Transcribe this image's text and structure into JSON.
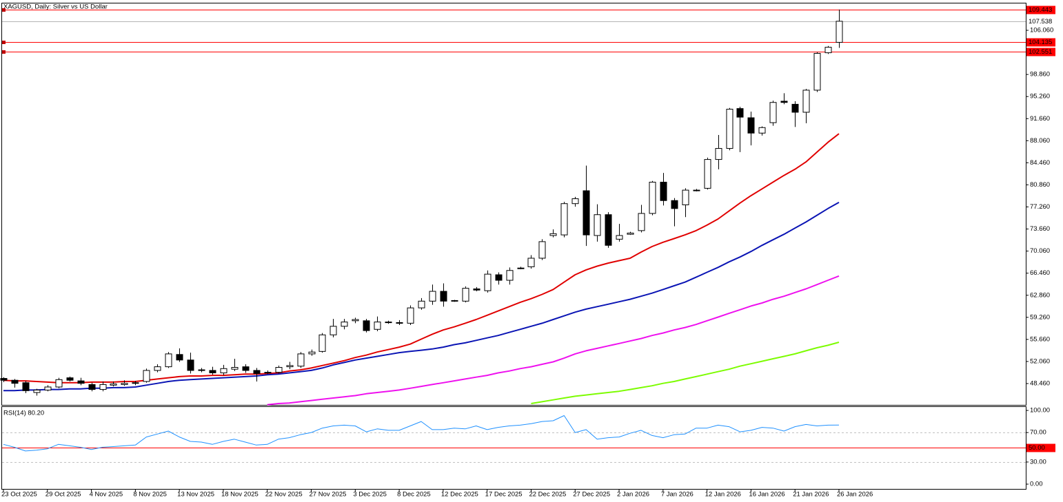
{
  "chart_data": [
    {
      "type": "candlestick",
      "title": "XAGUSD, Daily:  Silver vs US Dollar",
      "categories": [
        "23 Oct 2025",
        null,
        null,
        null,
        "29 Oct 2025",
        null,
        null,
        null,
        "4 Nov 2025",
        null,
        null,
        null,
        "8 Nov 2025",
        null,
        null,
        null,
        "13 Nov 2025",
        null,
        null,
        null,
        "18 Nov 2025",
        null,
        null,
        null,
        "22 Nov 2025",
        null,
        null,
        null,
        "27 Nov 2025",
        null,
        null,
        null,
        "3 Dec 2025",
        null,
        null,
        null,
        "8 Dec 2025",
        null,
        null,
        null,
        "12 Dec 2025",
        null,
        null,
        null,
        "17 Dec 2025",
        null,
        null,
        null,
        "22 Dec 2025",
        null,
        null,
        null,
        "27 Dec 2025",
        null,
        null,
        null,
        "2 Jan 2026",
        null,
        null,
        null,
        "7 Jan 2026",
        null,
        null,
        null,
        "12 Jan 2026",
        null,
        null,
        null,
        "16 Jan 2026",
        null,
        null,
        null,
        "21 Jan 2026",
        null,
        null,
        null,
        "26 Jan 2026"
      ],
      "open": [
        49.3,
        49.0,
        48.6,
        47.0,
        47.4,
        47.9,
        49.4,
        48.9,
        48.3,
        47.5,
        48.2,
        48.3,
        48.5,
        48.8,
        50.6,
        51.2,
        53.2,
        52.3,
        50.7,
        50.6,
        50.2,
        50.8,
        51.2,
        50.6,
        50.2,
        50.3,
        51.2,
        51.3,
        53.3,
        53.7,
        56.4,
        57.8,
        58.7,
        58.7,
        57.3,
        58.4,
        58.3,
        58.3,
        60.8,
        61.9,
        63.5,
        62.0,
        61.9,
        63.9,
        63.6,
        66.2,
        65.3,
        67.2,
        67.5,
        68.9,
        72.6,
        72.7,
        77.8,
        79.9,
        72.6,
        76.0,
        72.0,
        72.8,
        73.4,
        76.2,
        81.3,
        78.3,
        77.6,
        79.9,
        80.3,
        85.0,
        86.8,
        93.3,
        91.8,
        89.3,
        91.0,
        94.5,
        94.0,
        92.7,
        96.3,
        102.4,
        104.1
      ],
      "high": [
        49.5,
        49.2,
        48.9,
        47.6,
        48.2,
        49.4,
        49.6,
        49.4,
        48.6,
        48.8,
        48.8,
        49.0,
        48.9,
        50.9,
        51.6,
        53.6,
        54.2,
        53.5,
        51.0,
        51.2,
        51.5,
        52.5,
        51.6,
        51.0,
        50.6,
        51.4,
        52.0,
        53.6,
        54.0,
        56.7,
        59.0,
        59.0,
        59.2,
        59.0,
        59.4,
        58.7,
        58.8,
        61.2,
        62.4,
        64.6,
        64.8,
        62.1,
        64.3,
        64.2,
        66.9,
        66.6,
        67.4,
        67.5,
        69.4,
        72.0,
        73.6,
        78.1,
        78.9,
        84.0,
        77.7,
        76.4,
        74.5,
        73.2,
        77.6,
        81.5,
        82.8,
        78.7,
        80.3,
        80.2,
        85.3,
        89.0,
        93.4,
        93.6,
        92.8,
        90.4,
        94.6,
        95.8,
        94.5,
        96.5,
        102.5,
        103.5,
        109.443
      ],
      "low": [
        48.7,
        47.8,
        46.9,
        46.5,
        47.2,
        47.7,
        48.8,
        48.2,
        47.2,
        47.2,
        48.0,
        48.1,
        48.2,
        48.6,
        50.3,
        51.0,
        52.0,
        50.1,
        50.3,
        49.9,
        49.8,
        50.5,
        50.2,
        48.8,
        50.0,
        50.1,
        50.8,
        51.0,
        53.0,
        53.5,
        56.0,
        57.3,
        58.3,
        56.8,
        57.0,
        58.2,
        58.0,
        58.0,
        60.5,
        61.3,
        61.0,
        61.8,
        61.7,
        63.5,
        63.3,
        64.6,
        64.6,
        67.1,
        67.2,
        68.6,
        72.3,
        72.3,
        77.3,
        70.9,
        71.6,
        70.6,
        71.6,
        72.7,
        73.1,
        75.9,
        77.5,
        74.1,
        75.6,
        79.8,
        80.1,
        83.4,
        86.5,
        86.2,
        87.3,
        88.9,
        90.5,
        94.0,
        90.3,
        90.9,
        96.0,
        102.2,
        103.2
      ],
      "close": [
        49.0,
        48.5,
        47.3,
        47.4,
        47.9,
        49.1,
        49.0,
        48.5,
        47.5,
        48.3,
        48.4,
        48.5,
        48.6,
        50.6,
        51.2,
        53.3,
        52.3,
        50.6,
        50.6,
        50.2,
        50.9,
        51.1,
        50.6,
        50.1,
        50.3,
        51.1,
        51.4,
        53.3,
        53.6,
        56.4,
        57.8,
        58.5,
        58.9,
        57.1,
        58.5,
        58.5,
        58.4,
        60.8,
        61.9,
        63.5,
        61.9,
        61.9,
        64.0,
        63.7,
        66.3,
        65.3,
        66.9,
        67.3,
        68.9,
        71.6,
        72.9,
        77.8,
        78.6,
        72.7,
        76.0,
        71.0,
        72.6,
        73.0,
        76.2,
        81.3,
        78.3,
        77.0,
        80.0,
        80.0,
        85.0,
        86.8,
        93.2,
        91.9,
        89.3,
        90.2,
        94.3,
        94.3,
        92.7,
        96.3,
        102.3,
        103.3,
        107.538
      ],
      "up_color": "#ffffff",
      "down_color": "#000000",
      "overlays": [
        {
          "color": "#e00000",
          "values": [
            49.0,
            48.9,
            48.9,
            48.8,
            48.7,
            48.6,
            48.6,
            48.6,
            48.7,
            48.7,
            48.7,
            48.8,
            48.8,
            49.0,
            49.2,
            49.4,
            49.6,
            49.7,
            49.7,
            49.8,
            49.8,
            49.9,
            50.0,
            50.0,
            50.1,
            50.2,
            50.5,
            50.7,
            51.0,
            51.4,
            51.8,
            52.2,
            52.7,
            53.1,
            53.6,
            54.0,
            54.4,
            54.9,
            55.7,
            56.5,
            57.2,
            57.7,
            58.3,
            58.9,
            59.6,
            60.3,
            61.0,
            61.7,
            62.3,
            63.0,
            63.8,
            65.0,
            66.2,
            67.0,
            67.6,
            68.1,
            68.5,
            68.9,
            69.9,
            70.8,
            71.5,
            72.1,
            72.7,
            73.4,
            74.3,
            75.3,
            76.6,
            77.9,
            79.1,
            80.2,
            81.3,
            82.4,
            83.4,
            84.6,
            86.2,
            87.8,
            89.2
          ]
        },
        {
          "color": "#0a14b4",
          "values": [
            47.3,
            47.3,
            47.4,
            47.4,
            47.5,
            47.5,
            47.6,
            47.6,
            47.7,
            47.7,
            47.8,
            47.8,
            47.9,
            48.2,
            48.5,
            48.8,
            49.0,
            49.1,
            49.2,
            49.3,
            49.4,
            49.5,
            49.6,
            49.7,
            49.9,
            50.0,
            50.2,
            50.4,
            50.6,
            51.0,
            51.5,
            51.9,
            52.3,
            52.6,
            52.9,
            53.2,
            53.5,
            53.7,
            53.9,
            54.1,
            54.4,
            54.8,
            55.1,
            55.5,
            55.9,
            56.3,
            56.8,
            57.3,
            57.8,
            58.3,
            58.9,
            59.5,
            60.1,
            60.6,
            61.0,
            61.4,
            61.8,
            62.2,
            62.7,
            63.2,
            63.8,
            64.4,
            65.0,
            65.8,
            66.6,
            67.4,
            68.3,
            69.1,
            70.0,
            71.0,
            71.9,
            72.8,
            73.8,
            74.8,
            75.9,
            77.0,
            78.0
          ]
        },
        {
          "color": "#ee10ee",
          "values": [
            null,
            null,
            null,
            null,
            null,
            null,
            null,
            null,
            null,
            null,
            null,
            null,
            null,
            null,
            null,
            null,
            null,
            null,
            null,
            null,
            null,
            null,
            null,
            null,
            45.0,
            45.2,
            45.3,
            45.5,
            45.7,
            45.9,
            46.1,
            46.3,
            46.5,
            46.8,
            47.0,
            47.2,
            47.4,
            47.7,
            48.0,
            48.3,
            48.6,
            48.9,
            49.2,
            49.5,
            49.8,
            50.2,
            50.5,
            50.9,
            51.2,
            51.6,
            52.0,
            52.6,
            53.3,
            53.8,
            54.2,
            54.6,
            55.0,
            55.4,
            55.8,
            56.3,
            56.7,
            57.2,
            57.6,
            58.1,
            58.7,
            59.3,
            59.9,
            60.5,
            61.1,
            61.6,
            62.2,
            62.7,
            63.3,
            63.9,
            64.6,
            65.3,
            66.0
          ]
        },
        {
          "color": "#7cfc00",
          "values": [
            null,
            null,
            null,
            null,
            null,
            null,
            null,
            null,
            null,
            null,
            null,
            null,
            null,
            null,
            null,
            null,
            null,
            null,
            null,
            null,
            null,
            null,
            null,
            null,
            null,
            null,
            null,
            null,
            null,
            null,
            null,
            null,
            null,
            null,
            null,
            null,
            null,
            null,
            null,
            null,
            null,
            null,
            null,
            null,
            null,
            null,
            null,
            null,
            45.2,
            45.5,
            45.8,
            46.1,
            46.4,
            46.6,
            46.8,
            47.0,
            47.2,
            47.5,
            47.8,
            48.1,
            48.5,
            48.8,
            49.2,
            49.6,
            50.0,
            50.4,
            50.8,
            51.3,
            51.7,
            52.1,
            52.5,
            52.9,
            53.3,
            53.8,
            54.3,
            54.7,
            55.2
          ]
        }
      ],
      "levels": [
        {
          "value": 109.443,
          "color": "#ff0000",
          "boxed": true
        },
        {
          "value": 107.538,
          "color": "#b4b4b4",
          "boxed": false
        },
        {
          "value": 104.135,
          "color": "#ff0000",
          "boxed": true
        },
        {
          "value": 102.551,
          "color": "#ff0000",
          "boxed": true
        }
      ],
      "ylim": [
        44.98,
        110.44
      ],
      "yticks": [
        {
          "value": 48.46,
          "label": "48.460"
        },
        {
          "value": 52.06,
          "label": "52.060"
        },
        {
          "value": 55.66,
          "label": "55.660"
        },
        {
          "value": 59.26,
          "label": "59.260"
        },
        {
          "value": 62.86,
          "label": "62.860"
        },
        {
          "value": 66.46,
          "label": "66.460"
        },
        {
          "value": 70.06,
          "label": "70.060"
        },
        {
          "value": 73.66,
          "label": "73.660"
        },
        {
          "value": 77.26,
          "label": "77.260"
        },
        {
          "value": 80.86,
          "label": "80.860"
        },
        {
          "value": 84.46,
          "label": "84.460"
        },
        {
          "value": 88.06,
          "label": "88.060"
        },
        {
          "value": 91.66,
          "label": "91.660"
        },
        {
          "value": 95.26,
          "label": "95.260"
        },
        {
          "value": 98.86,
          "label": "98.860"
        },
        {
          "value": 106.06,
          "label": "106.060"
        }
      ]
    },
    {
      "type": "line",
      "title": "RSI(14) 80.20",
      "series": [
        {
          "color": "#1e90ff",
          "values": [
            54,
            50,
            45,
            46,
            48,
            54,
            52,
            50,
            47,
            50,
            51,
            52,
            53,
            64,
            68,
            72,
            64,
            58,
            57,
            54,
            58,
            61,
            57,
            53,
            54,
            61,
            63,
            67,
            70,
            76,
            79,
            80,
            79,
            71,
            75,
            73,
            73,
            79,
            85,
            74,
            74,
            76,
            75,
            79,
            74,
            77,
            79,
            80,
            82,
            85,
            86,
            93,
            70,
            74,
            61,
            63,
            64,
            69,
            73,
            66,
            63,
            67,
            68,
            76,
            76,
            80,
            78,
            71,
            73,
            77,
            76,
            72,
            78,
            81,
            79,
            80,
            80.2
          ]
        }
      ],
      "levels": [
        {
          "value": 70,
          "color": "#c0c0c0",
          "dashed": true
        },
        {
          "value": 50,
          "label": "50.00",
          "color": "#ff0000",
          "boxed": true
        },
        {
          "value": 30,
          "color": "#c0c0c0",
          "dashed": true
        }
      ],
      "ylim": [
        -6.5,
        104.7
      ],
      "yticks": [
        {
          "value": 100,
          "label": "100.00"
        },
        {
          "value": 70,
          "label": "70.00"
        },
        {
          "value": 30,
          "label": "30.00"
        },
        {
          "value": 0,
          "label": "0.00"
        }
      ]
    }
  ]
}
